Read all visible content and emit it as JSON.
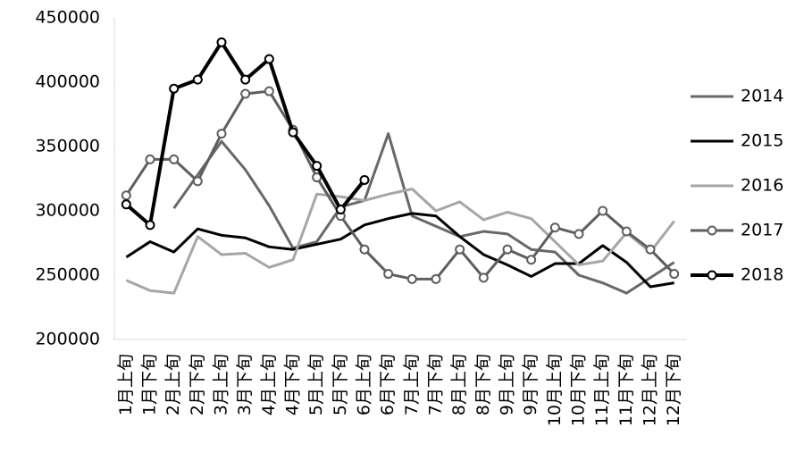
{
  "chart_data": {
    "type": "line",
    "categories": [
      "1月上旬",
      "1月下旬",
      "2月上旬",
      "2月下旬",
      "3月上旬",
      "3月下旬",
      "4月上旬",
      "4月下旬",
      "5月上旬",
      "5月下旬",
      "6月上旬",
      "6月下旬",
      "7月上旬",
      "7月下旬",
      "8月上旬",
      "8月下旬",
      "9月上旬",
      "9月下旬",
      "10月上旬",
      "10月下旬",
      "11月上旬",
      "11月下旬",
      "12月上旬",
      "12月下旬"
    ],
    "series": [
      {
        "name": "2014",
        "color": "#686868",
        "line_width": 3,
        "marker": "none",
        "values": [
          null,
          null,
          302000,
          328000,
          354000,
          332000,
          304000,
          271000,
          276000,
          303000,
          308000,
          360000,
          296000,
          288000,
          280000,
          284000,
          282000,
          270000,
          268000,
          250000,
          244000,
          236000,
          248000,
          260000
        ]
      },
      {
        "name": "2015",
        "color": "#000000",
        "line_width": 3,
        "marker": "none",
        "values": [
          264000,
          276000,
          268000,
          286000,
          281000,
          279000,
          272000,
          270000,
          274000,
          278000,
          289000,
          294000,
          298000,
          296000,
          280000,
          266000,
          258000,
          249000,
          259000,
          259000,
          273000,
          260000,
          241000,
          244000
        ]
      },
      {
        "name": "2016",
        "color": "#a6a6a6",
        "line_width": 3,
        "marker": "none",
        "values": [
          246000,
          238000,
          236000,
          280000,
          266000,
          267000,
          256000,
          262000,
          313000,
          311000,
          308000,
          313000,
          317000,
          300000,
          307000,
          293000,
          299000,
          294000,
          276000,
          258000,
          261000,
          283000,
          268000,
          292000
        ]
      },
      {
        "name": "2017",
        "color": "#5e5e5e",
        "line_width": 3,
        "marker": "circle",
        "values": [
          312000,
          340000,
          340000,
          323000,
          360000,
          391000,
          393000,
          363000,
          326000,
          296000,
          270000,
          251000,
          247000,
          247000,
          270000,
          248000,
          270000,
          262000,
          287000,
          282000,
          300000,
          284000,
          270000,
          251000
        ]
      },
      {
        "name": "2018",
        "color": "#000000",
        "line_width": 4,
        "marker": "circle",
        "values": [
          305000,
          289000,
          395000,
          402000,
          431000,
          402000,
          418000,
          361000,
          335000,
          301000,
          324000,
          null,
          null,
          null,
          null,
          null,
          null,
          null,
          null,
          null,
          null,
          null,
          null,
          null
        ]
      }
    ],
    "ylim": [
      200000,
      450000
    ],
    "yticks": [
      200000,
      250000,
      300000,
      350000,
      400000,
      450000
    ],
    "grid": false,
    "legend": "right"
  }
}
